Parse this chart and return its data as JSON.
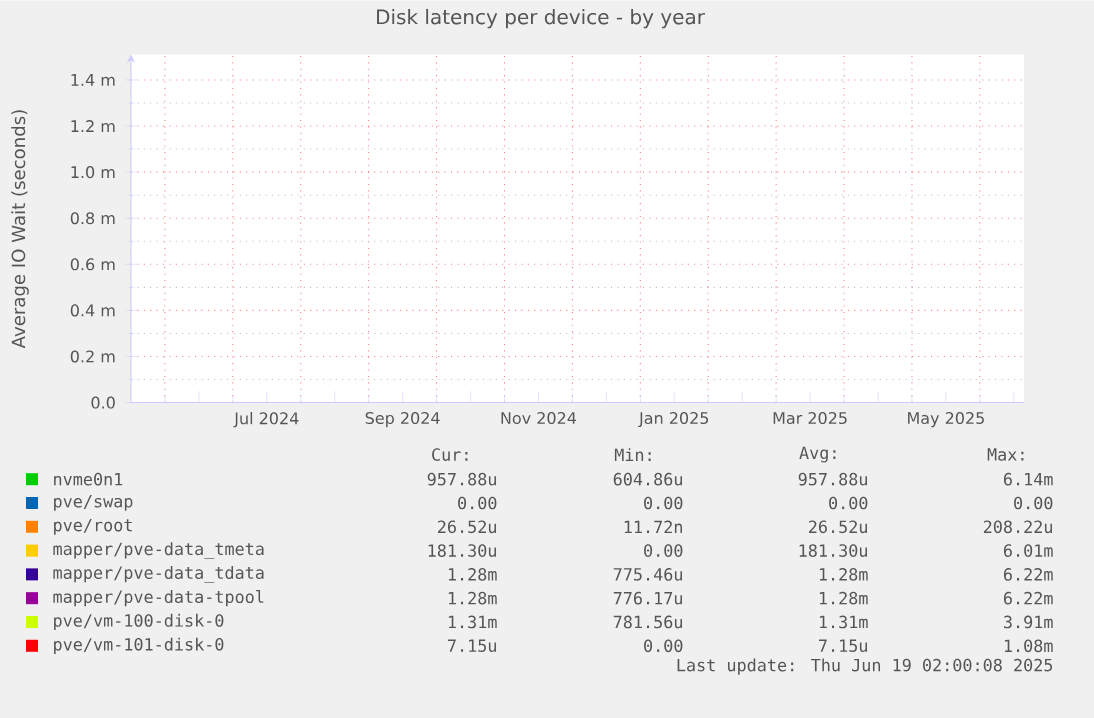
{
  "chart_data": {
    "type": "line",
    "title": "Disk latency per device - by year",
    "ylabel": "Average IO Wait (seconds)",
    "categories": [
      null,
      "Jul 2024",
      null,
      "Sep 2024",
      null,
      "Nov 2024",
      null,
      "Jan 2025",
      null,
      "Mar 2025",
      null,
      "May 2025",
      null
    ],
    "ylim": [
      0,
      1.51
    ],
    "yticks": [
      {
        "value": 0,
        "label": "0.0"
      },
      {
        "value": 0.2,
        "label": "0.2 m"
      },
      {
        "value": 0.4,
        "label": "0.4 m"
      },
      {
        "value": 0.6,
        "label": "0.6 m"
      },
      {
        "value": 0.8,
        "label": "0.8 m"
      },
      {
        "value": 1.0,
        "label": "1.0 m"
      },
      {
        "value": 1.2,
        "label": "1.2 m"
      },
      {
        "value": 1.4,
        "label": "1.4 m"
      }
    ],
    "grid": true,
    "legend": "bottom",
    "series": [
      {
        "name": "nvme0n1",
        "color": "#00cc00",
        "values": [
          null,
          null,
          null,
          null,
          null,
          null,
          null,
          null,
          null,
          null,
          null,
          null,
          null
        ]
      },
      {
        "name": "pve/swap",
        "color": "#0066b3",
        "values": [
          null,
          null,
          null,
          null,
          null,
          null,
          null,
          null,
          null,
          null,
          null,
          null,
          null
        ]
      },
      {
        "name": "pve/root",
        "color": "#ff8000",
        "values": [
          null,
          null,
          null,
          null,
          null,
          null,
          null,
          null,
          null,
          null,
          null,
          null,
          null
        ]
      },
      {
        "name": "mapper/pve-data_tmeta",
        "color": "#ffcc00",
        "values": [
          null,
          null,
          null,
          null,
          null,
          null,
          null,
          null,
          null,
          null,
          null,
          null,
          null
        ]
      },
      {
        "name": "mapper/pve-data_tdata",
        "color": "#330099",
        "values": [
          null,
          null,
          null,
          null,
          null,
          null,
          null,
          null,
          null,
          null,
          null,
          null,
          null
        ]
      },
      {
        "name": "mapper/pve-data-tpool",
        "color": "#990099",
        "values": [
          null,
          null,
          null,
          null,
          null,
          null,
          null,
          null,
          null,
          null,
          null,
          null,
          null
        ]
      },
      {
        "name": "pve/vm-100-disk-0",
        "color": "#ccff00",
        "values": [
          null,
          null,
          null,
          null,
          null,
          null,
          null,
          null,
          null,
          null,
          null,
          null,
          null
        ]
      },
      {
        "name": "pve/vm-101-disk-0",
        "color": "#ff0000",
        "values": [
          null,
          null,
          null,
          null,
          null,
          null,
          null,
          null,
          null,
          null,
          null,
          null,
          null
        ]
      }
    ],
    "annotations": [
      "Cur:",
      "Min:",
      "Avg:",
      "Max:",
      "957.88u",
      "604.86u",
      "957.88u",
      "6.14m",
      "0.00",
      "0.00",
      "0.00",
      "0.00",
      "26.52u",
      "11.72n",
      "26.52u",
      "208.22u",
      "181.30u",
      "0.00",
      "181.30u",
      "6.01m",
      "1.28m",
      "775.46u",
      "1.28m",
      "6.22m",
      "1.28m",
      "776.17u",
      "1.28m",
      "6.22m",
      "1.31m",
      "781.56u",
      "1.31m",
      "3.91m",
      "7.15u",
      "0.00",
      "7.15u",
      "1.08m",
      "Last update:  Thu Jun 19 02:00:08 2025"
    ]
  }
}
